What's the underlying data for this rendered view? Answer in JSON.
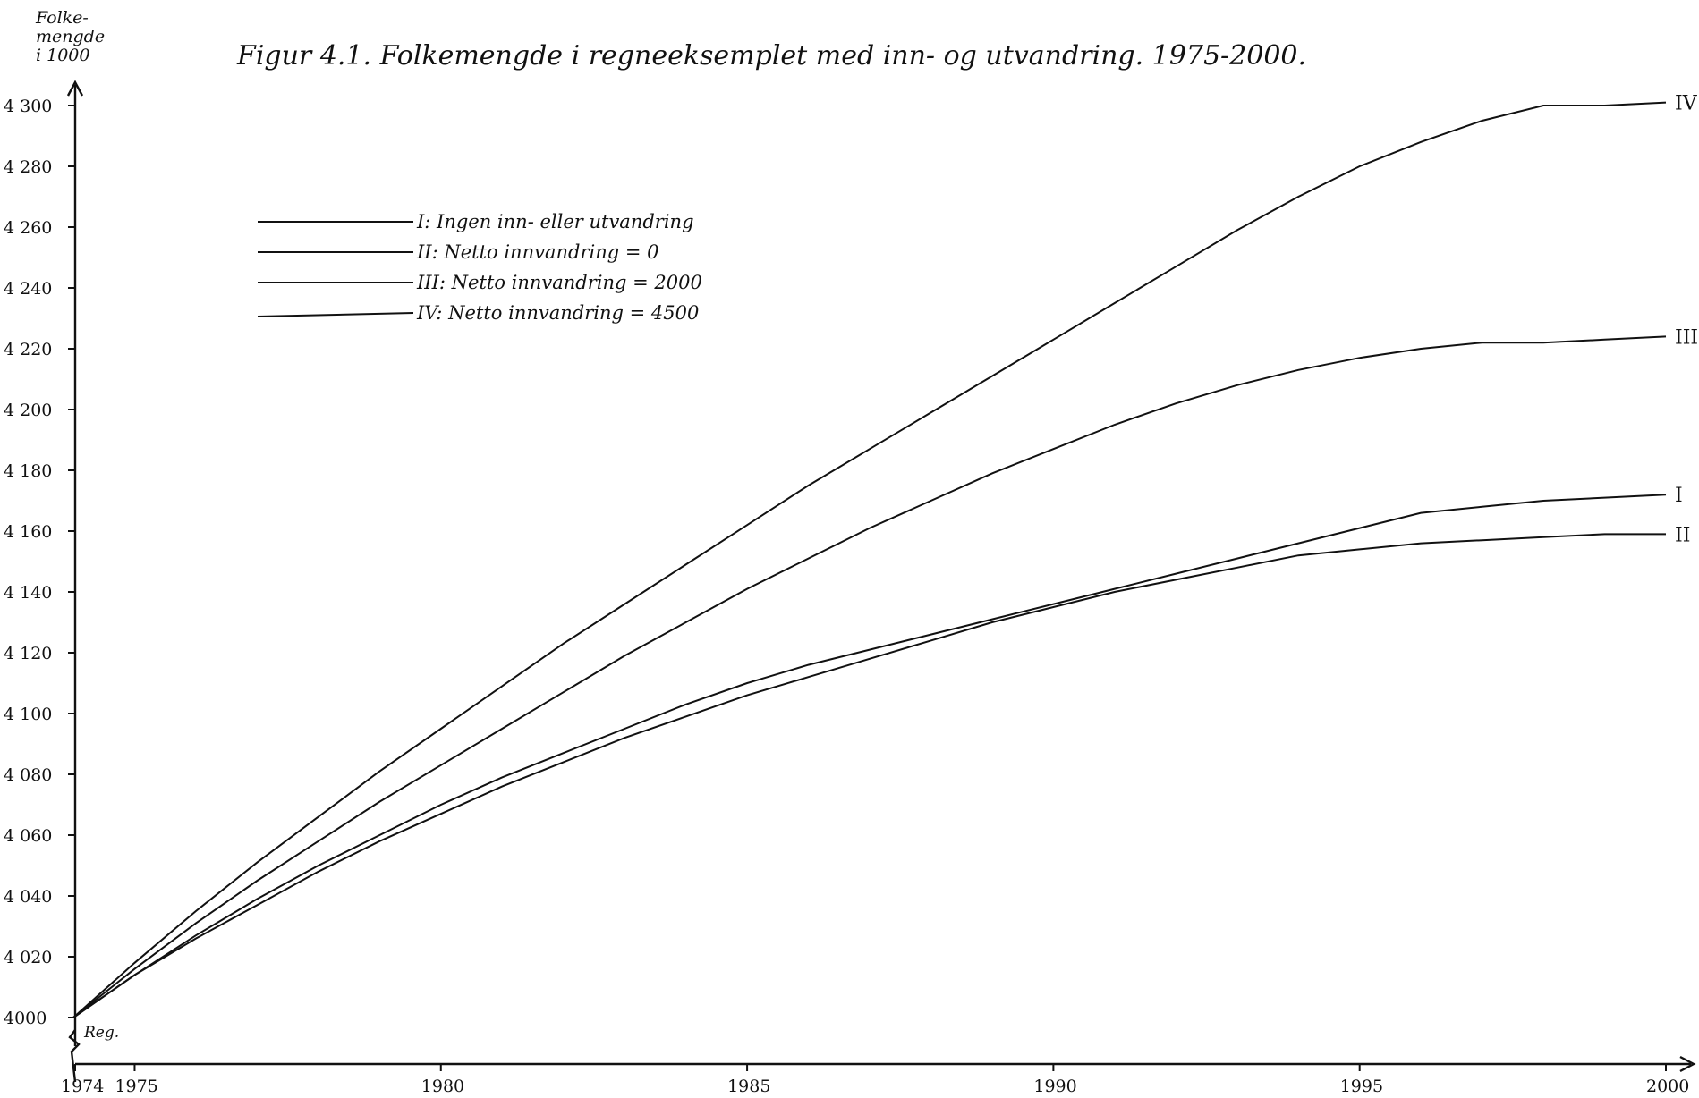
{
  "chart_data": {
    "type": "line",
    "title": "Figur 4.1. Folkemengde i regneeksemplet med inn- og utvandring. 1975-2000.",
    "ylabel": "Folke-\nmengde\ni 1000",
    "x_tick_labels": [
      "1974",
      "1975",
      "1980",
      "1985",
      "1990",
      "1995",
      "2000"
    ],
    "y_tick_labels": [
      "4000",
      "4 020",
      "4 040",
      "4 060",
      "4 080",
      "4 100",
      "4 120",
      "4 140",
      "4 160",
      "4 180",
      "4 200",
      "4 220",
      "4 240",
      "4 260",
      "4 280",
      "4 300"
    ],
    "xlim": [
      1974,
      2000
    ],
    "ylim": [
      4000,
      4300
    ],
    "grid": false,
    "legend_position": "top-left",
    "start_label": "Reg.",
    "x": [
      1974,
      1975,
      1976,
      1977,
      1978,
      1979,
      1980,
      1981,
      1982,
      1983,
      1984,
      1985,
      1986,
      1987,
      1988,
      1989,
      1990,
      1991,
      1992,
      1993,
      1994,
      1995,
      1996,
      1997,
      1998,
      1999,
      2000
    ],
    "series": [
      {
        "name": "I: Ingen inn- eller utvandring",
        "end_label": "I",
        "values": [
          4000,
          4014,
          4027,
          4039,
          4050,
          4060,
          4070,
          4079,
          4087,
          4095,
          4103,
          4110,
          4116,
          4121,
          4126,
          4131,
          4136,
          4141,
          4146,
          4151,
          4156,
          4161,
          4166,
          4168,
          4170,
          4171,
          4172
        ]
      },
      {
        "name": "II: Netto innvandring = 0",
        "end_label": "II",
        "values": [
          4000,
          4014,
          4026,
          4037,
          4048,
          4058,
          4067,
          4076,
          4084,
          4092,
          4099,
          4106,
          4112,
          4118,
          4124,
          4130,
          4135,
          4140,
          4144,
          4148,
          4152,
          4154,
          4156,
          4157,
          4158,
          4159,
          4159
        ]
      },
      {
        "name": "III: Netto innvandring = 2000",
        "end_label": "III",
        "values": [
          4000,
          4016,
          4031,
          4045,
          4058,
          4071,
          4083,
          4095,
          4107,
          4119,
          4130,
          4141,
          4151,
          4161,
          4170,
          4179,
          4187,
          4195,
          4202,
          4208,
          4213,
          4217,
          4220,
          4222,
          4222,
          4223,
          4224
        ]
      },
      {
        "name": "IV: Netto innvandring = 4500",
        "end_label": "IV",
        "values": [
          4000,
          4018,
          4035,
          4051,
          4066,
          4081,
          4095,
          4109,
          4123,
          4136,
          4149,
          4162,
          4175,
          4187,
          4199,
          4211,
          4223,
          4235,
          4247,
          4259,
          4270,
          4280,
          4288,
          4295,
          4300,
          4300,
          4301
        ]
      }
    ]
  }
}
